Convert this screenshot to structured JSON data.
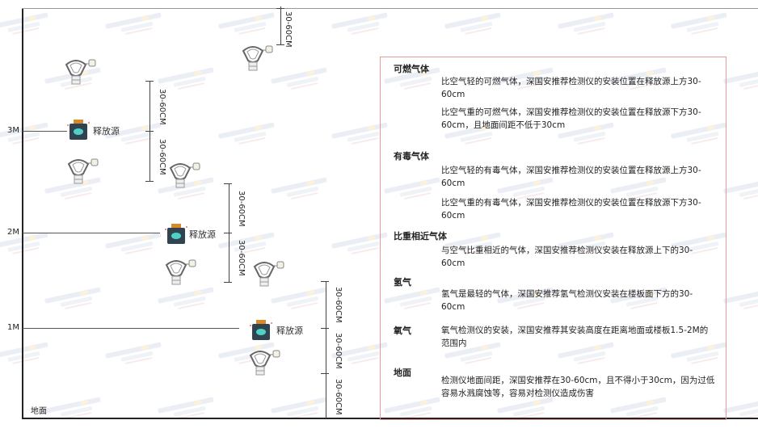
{
  "diagram": {
    "levels": [
      "3M",
      "2M",
      "1M"
    ],
    "ground_label": "地面",
    "source_label": "释放源",
    "dimension_label": "30-60CM",
    "watermark": {
      "brand": "SINGOAN",
      "cn": "深国安"
    }
  },
  "panel": {
    "sections": [
      {
        "title": "可燃气体",
        "paragraphs": [
          "比空气轻的可燃气体，深国安推荐检测仪的安装位置在释放源上方30-60cm",
          "比空气重的可燃气体，深国安推荐检测仪的安装位置在释放源下方30-60cm，且地面间距不低于30cm"
        ]
      },
      {
        "title": "有毒气体",
        "paragraphs": [
          "比空气轻的有毒气体，深国安推荐检测仪的安装位置在释放源上方30-60cm",
          "比空气重的有毒气体，深国安推荐检测仪的安装位置在释放源下方30-60cm"
        ]
      },
      {
        "title": "比重相近气体",
        "paragraphs": [
          "与空气比重相近的气体，深国安推荐检测仪安装在释放源上下的30-60cm"
        ]
      },
      {
        "title": "氢气",
        "paragraphs": [
          "氢气是最轻的气体，深国安推荐氢气检测仪安装在楼板面下方的30-60cm"
        ]
      },
      {
        "title": "氧气",
        "paragraphs": [
          "氧气检测仪的安装，深国安推荐其安装高度在距离地面或楼板1.5-2M的范围内"
        ]
      },
      {
        "title": "地面",
        "paragraphs": [
          "检测仪地面间距，深国安推荐在30-60cm，且不得小于30cm，因为过低容易水溅腐蚀等，容易对检测仪造成伤害"
        ]
      }
    ]
  },
  "colors": {
    "panel_border": "#e89a9a",
    "source_body": "#2f4450",
    "source_cap": "#d88a2a",
    "source_face": "#4fd1c5"
  }
}
